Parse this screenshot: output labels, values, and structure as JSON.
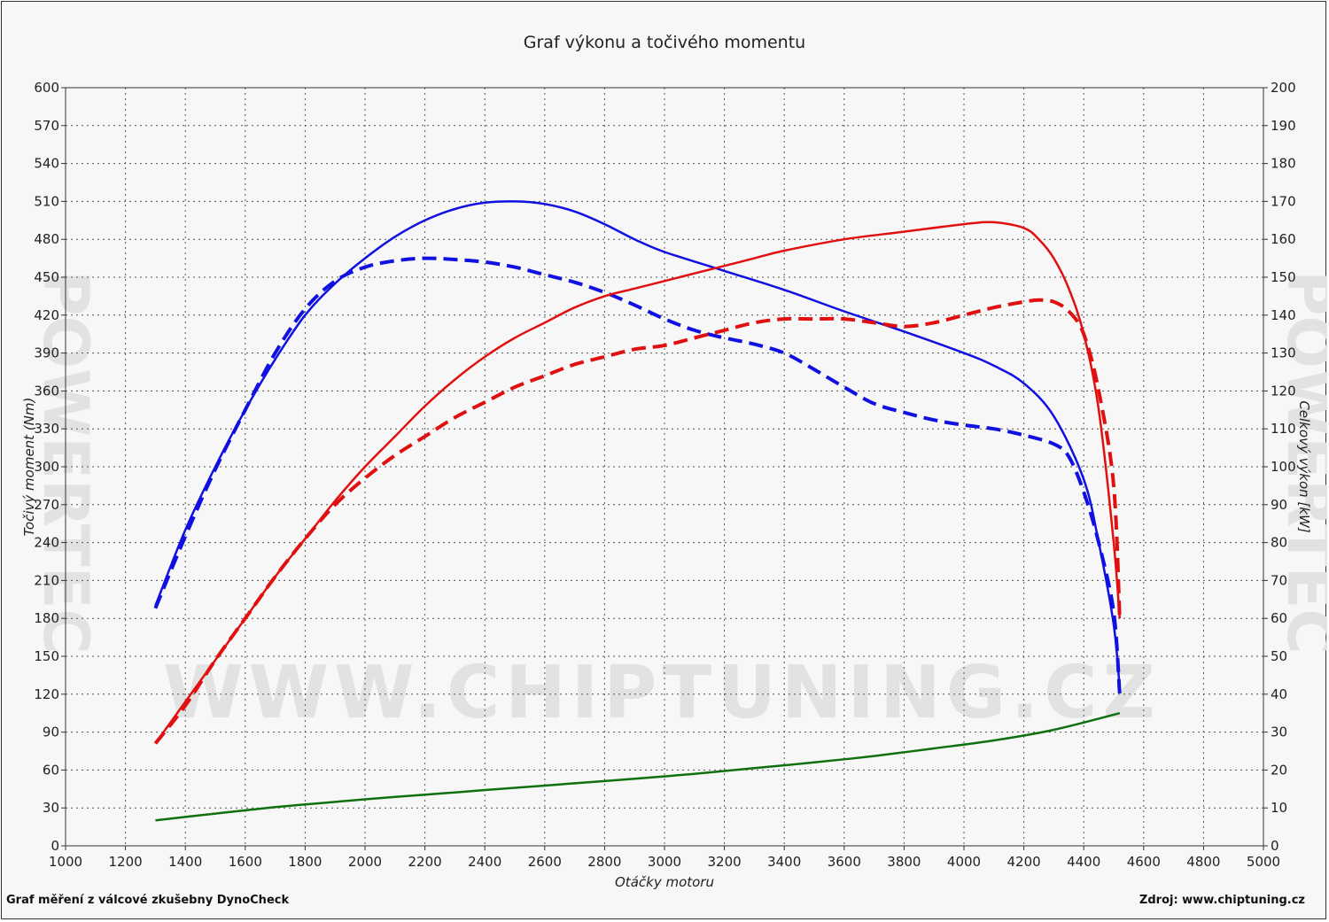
{
  "chart_data": {
    "type": "line",
    "title": "Graf výkonu a točivého momentu",
    "xlabel": "Otáčky motoru",
    "ylabel_left": "Točivý moment (Nm)",
    "ylabel_right": "Celkový výkon [kW]",
    "xlim": [
      1000,
      5000
    ],
    "ylim_left": [
      0,
      600
    ],
    "ylim_right": [
      0,
      200
    ],
    "x_ticks": [
      1000,
      1200,
      1400,
      1600,
      1800,
      2000,
      2200,
      2400,
      2600,
      2800,
      3000,
      3200,
      3400,
      3600,
      3800,
      4000,
      4200,
      4400,
      4600,
      4800,
      5000
    ],
    "y_left_ticks": [
      0,
      30,
      60,
      90,
      120,
      150,
      180,
      210,
      240,
      270,
      300,
      330,
      360,
      390,
      420,
      450,
      480,
      510,
      540,
      570,
      600
    ],
    "y_right_ticks": [
      0,
      10,
      20,
      30,
      40,
      50,
      60,
      70,
      80,
      90,
      100,
      110,
      120,
      130,
      140,
      150,
      160,
      170,
      180,
      190,
      200
    ],
    "grid": true,
    "series": [
      {
        "axis": "left",
        "color": "#1010e0",
        "style": "solid",
        "x": [
          1300,
          1400,
          1500,
          1600,
          1700,
          1800,
          1900,
          2000,
          2100,
          2200,
          2300,
          2400,
          2500,
          2600,
          2700,
          2800,
          2900,
          3000,
          3200,
          3400,
          3600,
          3800,
          4000,
          4100,
          4200,
          4300,
          4400,
          4450,
          4500,
          4520
        ],
        "y": [
          190,
          250,
          300,
          345,
          385,
          420,
          445,
          465,
          482,
          495,
          504,
          509,
          510,
          508,
          502,
          492,
          480,
          470,
          455,
          440,
          423,
          407,
          390,
          380,
          366,
          340,
          290,
          240,
          175,
          125
        ]
      },
      {
        "axis": "left",
        "color": "#1010e0",
        "style": "dashed",
        "x": [
          1300,
          1400,
          1500,
          1600,
          1700,
          1800,
          1900,
          2000,
          2100,
          2200,
          2300,
          2400,
          2500,
          2600,
          2700,
          2800,
          2900,
          3000,
          3100,
          3200,
          3300,
          3400,
          3500,
          3600,
          3700,
          3800,
          3900,
          4000,
          4100,
          4200,
          4300,
          4350,
          4400,
          4450,
          4500,
          4520
        ],
        "y": [
          188,
          245,
          298,
          345,
          390,
          425,
          447,
          458,
          463,
          465,
          464,
          462,
          458,
          452,
          446,
          438,
          428,
          417,
          408,
          402,
          397,
          390,
          377,
          363,
          350,
          343,
          337,
          333,
          330,
          325,
          318,
          308,
          280,
          240,
          185,
          120
        ]
      },
      {
        "axis": "right",
        "color": "#e01010",
        "style": "solid",
        "x": [
          1300,
          1400,
          1500,
          1600,
          1700,
          1800,
          1900,
          2000,
          2100,
          2200,
          2300,
          2400,
          2500,
          2600,
          2700,
          2800,
          2900,
          3000,
          3100,
          3200,
          3300,
          3400,
          3600,
          3800,
          4000,
          4100,
          4200,
          4250,
          4300,
          4350,
          4400,
          4450,
          4500,
          4520
        ],
        "y": [
          27,
          38,
          49,
          60,
          71,
          81,
          91,
          100,
          108,
          116,
          123,
          129,
          134,
          138,
          142,
          145,
          147,
          149,
          151,
          153,
          155,
          157,
          160,
          162,
          164,
          164.5,
          163,
          160,
          155,
          147,
          135,
          115,
          80,
          60
        ]
      },
      {
        "axis": "right",
        "color": "#e01010",
        "style": "dashed",
        "x": [
          1300,
          1400,
          1500,
          1600,
          1700,
          1800,
          1900,
          2000,
          2100,
          2200,
          2300,
          2400,
          2500,
          2600,
          2700,
          2800,
          2900,
          3000,
          3100,
          3200,
          3300,
          3400,
          3500,
          3600,
          3700,
          3800,
          3900,
          4000,
          4100,
          4200,
          4250,
          4300,
          4350,
          4400,
          4450,
          4500,
          4520
        ],
        "y": [
          27,
          37,
          49,
          60,
          71,
          81,
          90,
          97,
          103,
          108,
          113,
          117,
          121,
          124,
          127,
          129,
          131,
          132,
          134,
          136,
          138,
          139,
          139,
          139,
          138,
          137,
          138,
          140,
          142,
          143.5,
          144,
          143.5,
          141,
          135,
          120,
          95,
          60
        ]
      },
      {
        "axis": "right",
        "color": "#107010",
        "style": "solid",
        "x": [
          1300,
          1500,
          1700,
          1900,
          2100,
          2300,
          2500,
          2700,
          2900,
          3100,
          3300,
          3500,
          3700,
          3900,
          4100,
          4300,
          4520
        ],
        "y": [
          6.7,
          8.5,
          10.2,
          11.6,
          12.9,
          14.1,
          15.3,
          16.5,
          17.7,
          19.0,
          20.5,
          22.0,
          23.7,
          25.7,
          27.8,
          30.6,
          35
        ]
      }
    ]
  },
  "footer": {
    "left": "Graf měření z válcové zkušebny DynoCheck",
    "right": "Zdroj: www.chiptuning.cz"
  },
  "watermark": {
    "center": "WWW.CHIPTUNING.CZ",
    "side": "POWERTEC"
  }
}
